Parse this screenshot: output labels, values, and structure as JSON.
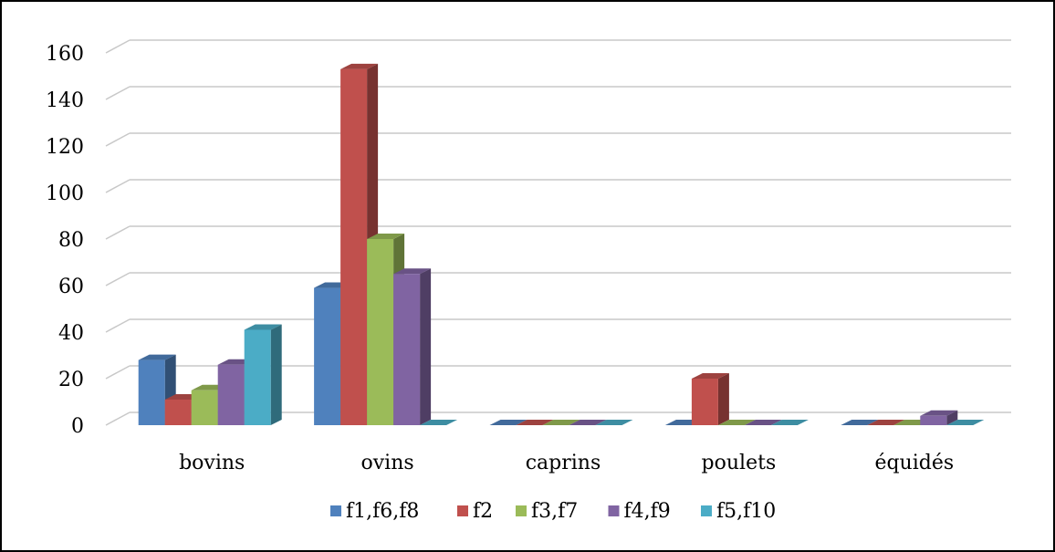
{
  "chart_data": {
    "type": "bar",
    "style": "3d-clustered-column",
    "categories": [
      "bovins",
      "ovins",
      "caprins",
      "poulets",
      "équidés"
    ],
    "series": [
      {
        "name": "f1,f6,f8",
        "color": "#4F81BD",
        "values": [
          28,
          59,
          0,
          0,
          0
        ]
      },
      {
        "name": "f2",
        "color": "#C0504D",
        "values": [
          11,
          153,
          0,
          20,
          0
        ]
      },
      {
        "name": "f3,f7",
        "color": "#9BBB59",
        "values": [
          15,
          80,
          0,
          0,
          0
        ]
      },
      {
        "name": "f4,f9",
        "color": "#8064A2",
        "values": [
          26,
          65,
          0,
          0,
          4
        ]
      },
      {
        "name": "f5,f10",
        "color": "#4BACC6",
        "values": [
          41,
          0,
          0,
          0,
          0
        ]
      }
    ],
    "ylim": [
      0,
      160
    ],
    "yticks": [
      0,
      20,
      40,
      60,
      80,
      100,
      120,
      140,
      160
    ],
    "grid": true,
    "legend": "bottom",
    "title": "",
    "xlabel": "",
    "ylabel": ""
  }
}
